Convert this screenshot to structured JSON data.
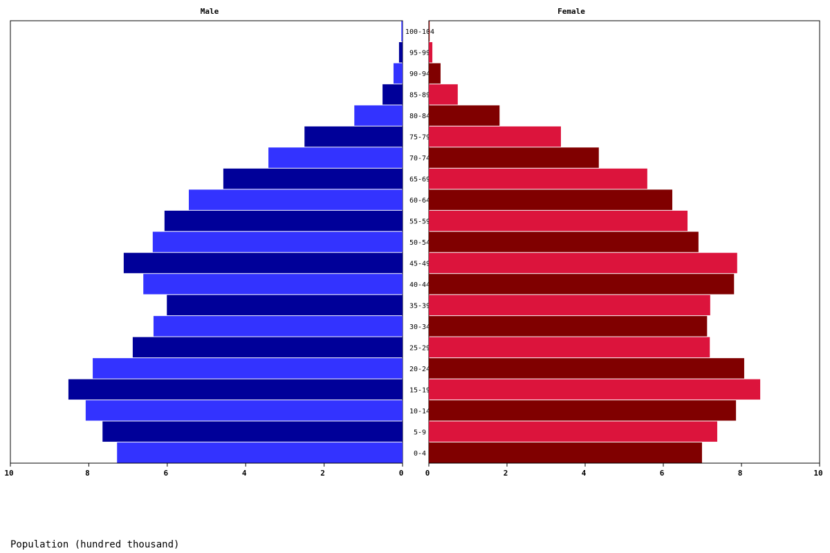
{
  "chart_data": {
    "type": "population-pyramid",
    "categories": [
      "0-4",
      "5-9",
      "10-14",
      "15-19",
      "20-24",
      "25-29",
      "30-34",
      "35-39",
      "40-44",
      "45-49",
      "50-54",
      "55-59",
      "60-64",
      "65-69",
      "70-74",
      "75-79",
      "80-84",
      "85-89",
      "90-94",
      "95-99",
      "100-104"
    ],
    "series": [
      {
        "name": "Male",
        "colors": [
          "#3333ff",
          "#000099"
        ],
        "values": [
          7.28,
          7.65,
          8.08,
          8.52,
          7.9,
          6.88,
          6.35,
          6.01,
          6.61,
          7.11,
          6.37,
          6.07,
          5.45,
          4.57,
          3.42,
          2.5,
          1.23,
          0.51,
          0.23,
          0.09,
          0.03
        ]
      },
      {
        "name": "Female",
        "colors": [
          "#800000",
          "#dc143c"
        ],
        "values": [
          6.99,
          7.38,
          7.86,
          8.48,
          8.07,
          7.19,
          7.12,
          7.2,
          7.81,
          7.89,
          6.9,
          6.62,
          6.23,
          5.59,
          4.35,
          3.38,
          1.81,
          0.74,
          0.3,
          0.09,
          0.02
        ]
      }
    ],
    "xlim": [
      0,
      10
    ],
    "xticks": [
      0,
      2,
      4,
      6,
      8,
      10
    ],
    "xlabel": "Population (hundred thousand)"
  }
}
